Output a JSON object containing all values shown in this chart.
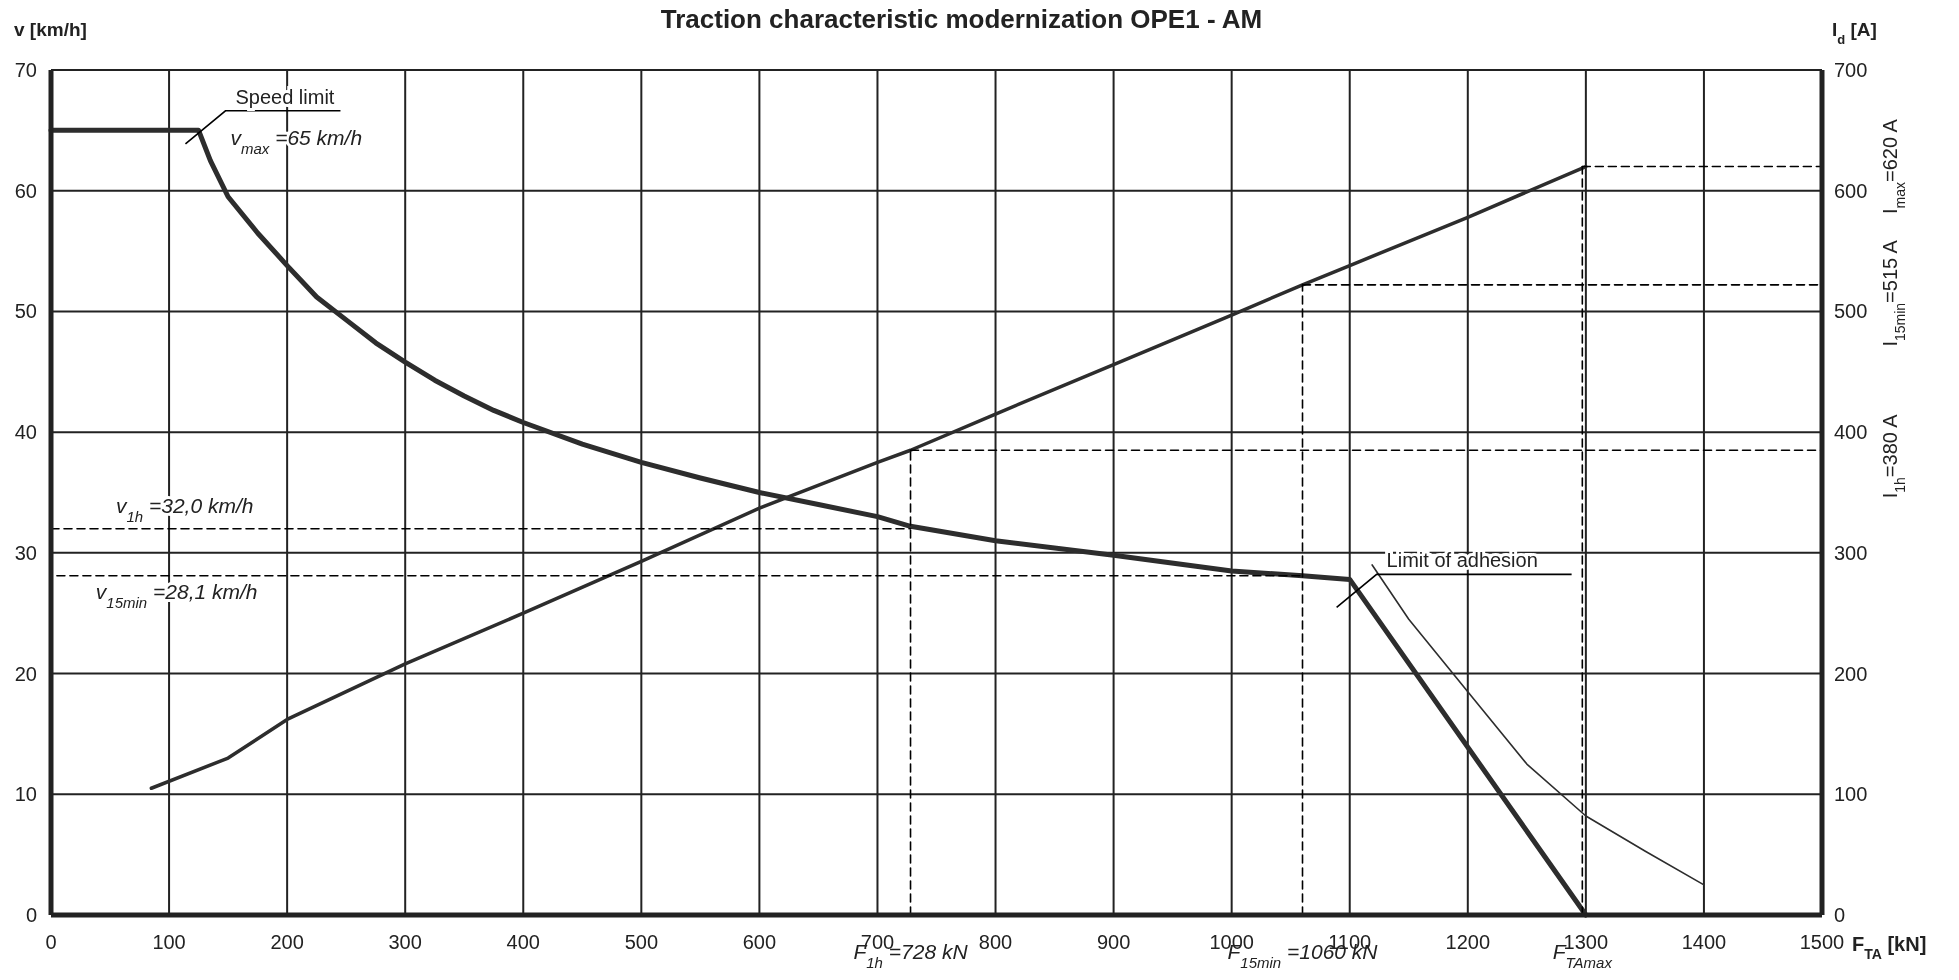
{
  "chart_data": {
    "type": "line",
    "title": "Traction characteristic modernization OPE1 - AM",
    "xlabel": "F$_{TA}$ [kN]",
    "ylabel": "v [km/h]",
    "y2label": "I$_{d}$ [A]",
    "xlim": [
      0,
      1500
    ],
    "xticks": [
      0,
      100,
      200,
      300,
      400,
      500,
      600,
      700,
      800,
      900,
      1000,
      1100,
      1200,
      1300,
      1400,
      1500
    ],
    "ylim": [
      0,
      70
    ],
    "yticks": [
      0,
      10,
      20,
      30,
      40,
      50,
      60,
      70
    ],
    "y2lim": [
      0,
      700
    ],
    "y2ticks": [
      0,
      100,
      200,
      300,
      400,
      500,
      600,
      700
    ],
    "grid": true,
    "marker": "none",
    "series": [
      {
        "color": "#2d2d2d",
        "x": [
          0,
          125,
          135,
          150,
          175,
          200,
          225,
          250,
          275,
          300,
          325,
          350,
          375,
          400,
          450,
          500,
          550,
          600,
          650,
          700,
          728,
          800,
          900,
          1000,
          1060,
          1100,
          1300
        ],
        "values": [
          65,
          65,
          62.5,
          59.5,
          56.5,
          53.8,
          51.2,
          49.3,
          47.4,
          45.8,
          44.3,
          43,
          41.8,
          40.8,
          39,
          37.5,
          36.2,
          35,
          34,
          33,
          32.2,
          31,
          29.8,
          28.5,
          28.1,
          27.8,
          0
        ]
      },
      {
        "color": "#2d2d2d",
        "axis": "y2",
        "x": [
          85,
          150,
          200,
          300,
          400,
          500,
          600,
          700,
          728,
          800,
          900,
          1000,
          1060,
          1100,
          1200,
          1300
        ],
        "values": [
          105,
          130,
          162,
          208,
          250,
          293,
          337,
          375,
          385,
          415,
          456,
          497,
          522,
          538,
          578,
          620
        ]
      },
      {
        "color": "#2d2d2d",
        "x": [
          1119,
          1150,
          1200,
          1250,
          1300,
          1350,
          1400
        ],
        "values": [
          29,
          24.5,
          18.5,
          12.5,
          8.2,
          5.3,
          2.5
        ]
      },
      {
        "color": "#000000",
        "line_style": "dashed",
        "x": [
          0,
          728
        ],
        "values": [
          32,
          32
        ]
      },
      {
        "color": "#000000",
        "line_style": "dashed",
        "x": [
          5,
          1060
        ],
        "values": [
          28.1,
          28.1
        ]
      },
      {
        "color": "#000000",
        "line_style": "dashed",
        "x": [
          728,
          728
        ],
        "values": [
          0,
          38.5
        ]
      },
      {
        "color": "#000000",
        "line_style": "dashed",
        "x": [
          1060,
          1060
        ],
        "values": [
          0,
          52.2
        ]
      },
      {
        "color": "#000000",
        "line_style": "dashed",
        "x": [
          1297,
          1297
        ],
        "values": [
          0,
          62
        ]
      },
      {
        "color": "#000000",
        "line_style": "dashed",
        "axis": "y2",
        "x": [
          728,
          1500
        ],
        "values": [
          385,
          385
        ]
      },
      {
        "color": "#000000",
        "line_style": "dashed",
        "axis": "y2",
        "x": [
          1060,
          1500
        ],
        "values": [
          522,
          522
        ]
      },
      {
        "color": "#000000",
        "line_style": "dashed",
        "axis": "y2",
        "x": [
          1297,
          1500
        ],
        "values": [
          620,
          620
        ]
      }
    ],
    "annotations": [
      "Speed limit",
      "v$_{max}$ =65 km/h",
      "v$_{1h}$ =32,0 km/h",
      "v$_{15min}$ =28,1 km/h",
      "Limit of adhesion",
      {
        "text": "F$_{1h}$ =728 kN",
        "x": 728,
        "y": 0
      },
      {
        "text": "F$_{15min}$ =1060 kN",
        "x": 1060,
        "y": 0
      },
      {
        "text": "F$_{TAmax}$",
        "x": 1297,
        "y": 0
      },
      "I$_{1h}$=380 A",
      "I$_{15min}$=515 A",
      "I$_{max}$=620 A"
    ]
  }
}
